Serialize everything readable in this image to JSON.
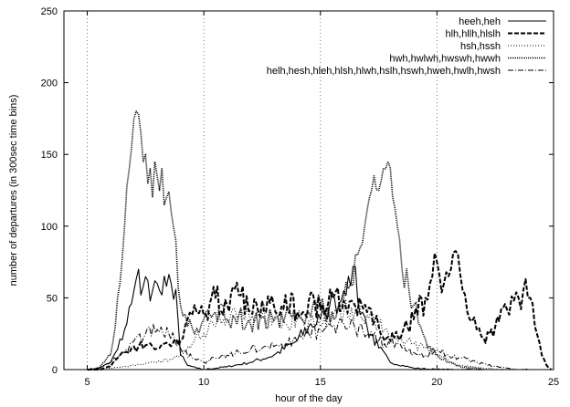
{
  "chart_data": {
    "type": "line",
    "title": "",
    "xlabel": "hour of the day",
    "ylabel": "number of departures (in 300sec time bins)",
    "xlim": [
      4,
      25
    ],
    "ylim": [
      0,
      250
    ],
    "xticks": [
      5,
      10,
      15,
      20,
      25
    ],
    "yticks": [
      0,
      50,
      100,
      150,
      200,
      250
    ],
    "grid": "dotted, vertical lines at x ticks only",
    "legend_position": "top-right",
    "series": [
      {
        "name": "heeh,heh",
        "style": "solid",
        "x": [
          5.0,
          5.5,
          6.0,
          6.3,
          6.6,
          6.9,
          7.0,
          7.1,
          7.2,
          7.3,
          7.4,
          7.6,
          7.8,
          8.0,
          8.2,
          8.4,
          8.6,
          8.8,
          9.0,
          9.3,
          9.7,
          10.0,
          11.0,
          12.0,
          13.0,
          14.0,
          14.5,
          15.0,
          15.2,
          15.4,
          15.6,
          15.8,
          16.0,
          16.2,
          16.4,
          16.6,
          16.8,
          17.0,
          17.5,
          18.0,
          19.0,
          20.0,
          21.0,
          22.0
        ],
        "y": [
          0,
          1,
          5,
          14,
          28,
          46,
          55,
          63,
          70,
          52,
          58,
          62,
          55,
          60,
          52,
          58,
          60,
          56,
          10,
          3,
          1,
          0,
          2,
          5,
          10,
          20,
          30,
          35,
          40,
          45,
          50,
          46,
          55,
          65,
          72,
          48,
          40,
          30,
          15,
          5,
          1,
          0,
          0,
          0
        ]
      },
      {
        "name": "hlh,hllh,hlslh",
        "style": "dashed-thick",
        "x": [
          5.0,
          5.5,
          6.0,
          6.3,
          6.6,
          6.9,
          7.2,
          7.5,
          7.8,
          8.1,
          8.5,
          9.0,
          9.3,
          9.6,
          10.0,
          10.5,
          11.0,
          11.5,
          12.0,
          12.5,
          13.0,
          13.5,
          14.0,
          14.5,
          15.0,
          15.5,
          16.0,
          16.5,
          17.0,
          17.5,
          18.0,
          18.5,
          19.0,
          19.5,
          19.8,
          20.0,
          20.3,
          20.6,
          20.9,
          21.1,
          21.4,
          21.7,
          22.0,
          22.5,
          23.0,
          23.3,
          23.5,
          23.7,
          24.0,
          24.2,
          24.5,
          24.7,
          24.9
        ],
        "y": [
          0,
          0,
          2,
          8,
          12,
          15,
          16,
          17,
          16,
          15,
          18,
          20,
          35,
          45,
          38,
          50,
          45,
          52,
          40,
          48,
          45,
          52,
          40,
          48,
          42,
          50,
          48,
          44,
          40,
          30,
          20,
          25,
          35,
          50,
          65,
          75,
          60,
          70,
          80,
          55,
          35,
          28,
          22,
          30,
          42,
          48,
          50,
          55,
          50,
          30,
          10,
          3,
          0
        ]
      },
      {
        "name": "hsh,hssh",
        "style": "dotted-fine",
        "x": [
          5.0,
          6.0,
          7.0,
          8.0,
          9.0,
          9.5,
          10.0,
          10.5,
          11.0,
          11.5,
          12.0,
          12.5,
          13.0,
          13.5,
          14.0,
          14.5,
          15.0,
          15.5,
          16.0,
          16.5,
          17.0,
          17.5,
          18.0,
          18.5,
          19.0,
          19.5,
          20.0,
          20.5,
          21.0,
          22.0,
          23.0
        ],
        "y": [
          0,
          1,
          3,
          5,
          10,
          18,
          25,
          30,
          35,
          38,
          34,
          38,
          36,
          32,
          38,
          34,
          30,
          35,
          40,
          42,
          38,
          30,
          25,
          20,
          18,
          15,
          10,
          6,
          3,
          1,
          0
        ]
      },
      {
        "name": "hwh,hwlwh,hwswh,hwwh",
        "style": "dotted-dense",
        "x": [
          5.0,
          5.5,
          6.0,
          6.2,
          6.4,
          6.6,
          6.8,
          7.0,
          7.1,
          7.2,
          7.3,
          7.4,
          7.5,
          7.6,
          7.7,
          7.8,
          7.9,
          8.0,
          8.1,
          8.2,
          8.3,
          8.4,
          8.6,
          8.8,
          9.0,
          9.3,
          9.6,
          10.0,
          10.5,
          11.0,
          11.5,
          12.0,
          12.5,
          13.0,
          13.5,
          14.0,
          14.5,
          15.0,
          15.5,
          16.0,
          16.3,
          16.6,
          16.9,
          17.1,
          17.3,
          17.5,
          17.7,
          17.9,
          18.1,
          18.3,
          18.5,
          18.8,
          19.0,
          19.3,
          19.6,
          20.0,
          20.5,
          21.0,
          21.5,
          22.0
        ],
        "y": [
          0,
          1,
          10,
          30,
          60,
          100,
          140,
          175,
          180,
          178,
          165,
          145,
          150,
          130,
          140,
          120,
          145,
          135,
          125,
          140,
          115,
          120,
          110,
          90,
          45,
          30,
          25,
          35,
          40,
          35,
          38,
          32,
          36,
          34,
          38,
          35,
          40,
          45,
          40,
          50,
          60,
          80,
          100,
          120,
          135,
          125,
          140,
          145,
          120,
          100,
          70,
          55,
          45,
          30,
          15,
          10,
          5,
          2,
          1,
          0
        ]
      },
      {
        "name": "helh,hesh,hleh,hlsh,hlwh,hslh,hswh,hweh,hwlh,hwsh",
        "style": "dash-dot",
        "x": [
          5.0,
          5.5,
          6.0,
          6.5,
          7.0,
          7.5,
          8.0,
          8.5,
          9.0,
          9.5,
          10.0,
          10.5,
          11.0,
          11.5,
          12.0,
          12.5,
          13.0,
          13.5,
          14.0,
          14.5,
          15.0,
          15.5,
          16.0,
          16.5,
          17.0,
          17.5,
          18.0,
          18.5,
          19.0,
          19.5,
          20.0,
          20.5,
          21.0,
          21.5,
          22.0,
          22.5,
          23.0,
          23.5,
          24.0
        ],
        "y": [
          0,
          1,
          5,
          12,
          20,
          25,
          28,
          25,
          15,
          8,
          5,
          8,
          10,
          12,
          14,
          15,
          16,
          18,
          20,
          25,
          28,
          30,
          32,
          28,
          25,
          20,
          18,
          15,
          12,
          10,
          14,
          10,
          8,
          6,
          4,
          2,
          1,
          0,
          0
        ]
      }
    ]
  }
}
